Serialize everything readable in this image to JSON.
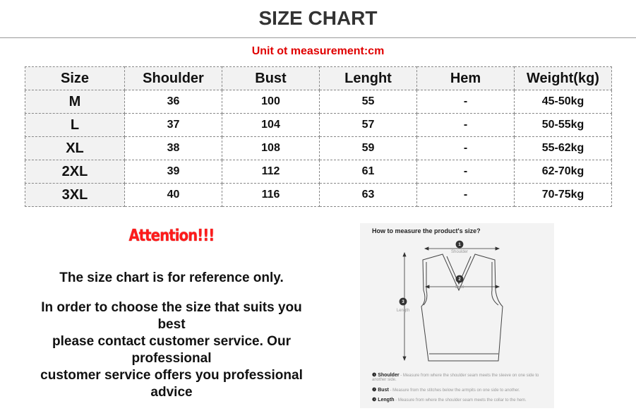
{
  "title": "SIZE CHART",
  "unit": "Unit ot measurement:cm",
  "table": {
    "headers": [
      "Size",
      "Shoulder",
      "Bust",
      "Lenght",
      "Hem",
      "Weight(kg)"
    ],
    "rows": [
      [
        "M",
        "36",
        "100",
        "55",
        "-",
        "45-50kg"
      ],
      [
        "L",
        "37",
        "104",
        "57",
        "-",
        "50-55kg"
      ],
      [
        "XL",
        "38",
        "108",
        "59",
        "-",
        "55-62kg"
      ],
      [
        "2XL",
        "39",
        "112",
        "61",
        "-",
        "62-70kg"
      ],
      [
        "3XL",
        "40",
        "116",
        "63",
        "-",
        "70-75kg"
      ]
    ]
  },
  "attention": "Attention!!!",
  "notes": [
    "The size chart is for reference only.",
    "In order to choose the size that suits you best\nplease contact customer service. Our professional\ncustomer service offers you professional advice"
  ],
  "diagram": {
    "heading": "How to measure the product's size?",
    "labels": {
      "shoulder": "Shoulder",
      "bust": "Bust",
      "length": "Length"
    },
    "legend": [
      {
        "num": "1",
        "name": "Shoulder",
        "desc": "- Measure from where the shoulder seam meets the sleeve on one side to another side."
      },
      {
        "num": "2",
        "name": "Bust",
        "desc": "- Measure from the stitches below the armpits on one side to another."
      },
      {
        "num": "3",
        "name": "Length",
        "desc": "- Measure from where the shoulder seam meets the collar to the hem."
      }
    ]
  }
}
